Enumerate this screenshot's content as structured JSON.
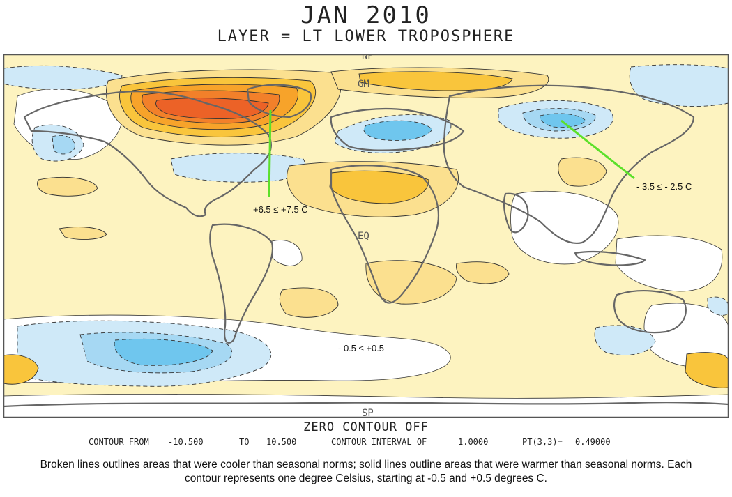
{
  "title": "JAN 2010",
  "subtitle": "LAYER = LT LOWER TROPOSPHERE",
  "map_labels": {
    "north_pole": "NP",
    "greenwich_meridian": "GM",
    "equator": "EQ",
    "south_pole": "SP"
  },
  "annotations": {
    "warm_max": "+6.5 ≤ +7.5 C",
    "cold_max": "- 3.5 ≤ - 2.5 C",
    "neutral": "- 0.5 ≤ +0.5"
  },
  "footer": {
    "zero_contour": "ZERO CONTOUR OFF",
    "contour_from_label": "CONTOUR FROM",
    "contour_from": "-10.500",
    "to_label": "TO",
    "contour_to": "10.500",
    "interval_label": "CONTOUR INTERVAL OF",
    "interval": "1.0000",
    "pt_label": "PT(3,3)=",
    "pt_value": "0.49000"
  },
  "caption": "Broken lines outlines areas that were cooler than seasonal norms; solid lines outline areas that were warmer than seasonal norms. Each contour represents one degree Celsius, starting at -0.5 and +0.5 degrees C.",
  "colors": {
    "warm_1": "#fdf3c0",
    "warm_2": "#fbe08f",
    "warm_3": "#f9c53c",
    "warm_4": "#f7a32a",
    "warm_5": "#f2802a",
    "warm_6": "#ec6227",
    "neutral": "#ffffff",
    "cool_1": "#cfe9f8",
    "cool_2": "#a6d8f3",
    "cool_3": "#6fc6ee",
    "land_outline": "#666666",
    "pointer": "#5ce02a"
  }
}
